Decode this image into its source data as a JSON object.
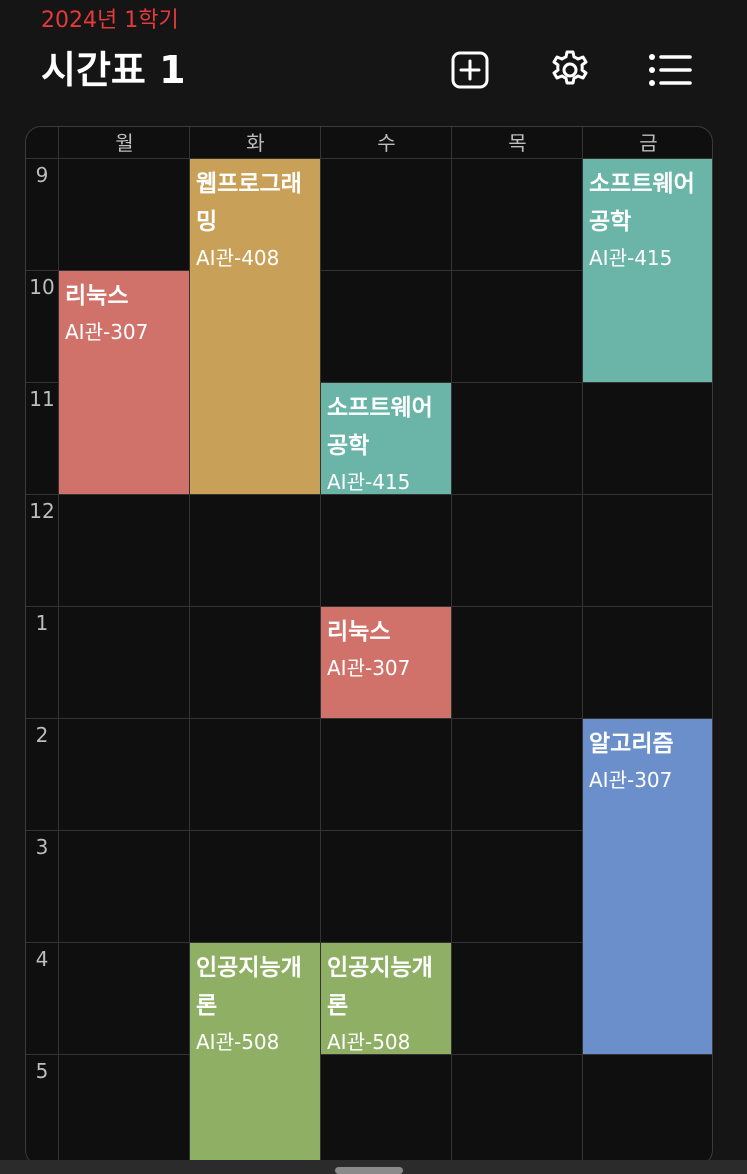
{
  "header": {
    "semester": "2024년 1학기",
    "title": "시간표 1"
  },
  "toolbar": {
    "add_icon": "plus-square-icon",
    "settings_icon": "gear-icon",
    "list_icon": "list-icon"
  },
  "days": [
    "월",
    "화",
    "수",
    "목",
    "금"
  ],
  "hours": [
    "9",
    "10",
    "11",
    "12",
    "1",
    "2",
    "3",
    "4",
    "5"
  ],
  "courses": [
    {
      "name": "웹프로그래밍",
      "room": "AI관-408",
      "day": "화",
      "start": "9:00",
      "end": "12:00",
      "color": "#c9a057"
    },
    {
      "name": "리눅스",
      "room": "AI관-307",
      "day": "월",
      "start": "10:00",
      "end": "12:00",
      "color": "#d0716a"
    },
    {
      "name": "소프트웨어공학",
      "room": "AI관-415",
      "day": "금",
      "start": "9:00",
      "end": "11:00",
      "color": "#6ab5a8"
    },
    {
      "name": "소프트웨어공학",
      "room": "AI관-415",
      "day": "수",
      "start": "11:00",
      "end": "12:00",
      "color": "#6ab5a8"
    },
    {
      "name": "리눅스",
      "room": "AI관-307",
      "day": "수",
      "start": "1:00",
      "end": "2:00",
      "color": "#d0716a"
    },
    {
      "name": "알고리즘",
      "room": "AI관-307",
      "day": "금",
      "start": "2:00",
      "end": "5:00",
      "color": "#6a8fca"
    },
    {
      "name": "인공지능개론",
      "room": "AI관-508",
      "day": "화",
      "start": "4:00",
      "end": "6:00",
      "color": "#8fb064"
    },
    {
      "name": "인공지능개론",
      "room": "AI관-508",
      "day": "수",
      "start": "4:00",
      "end": "5:00",
      "color": "#8fb064"
    }
  ]
}
